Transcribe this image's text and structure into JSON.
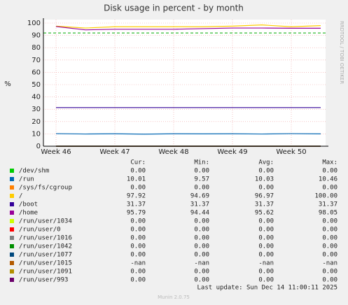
{
  "chart_data": {
    "type": "line",
    "title": "Disk usage in percent - by month",
    "y_label": "%",
    "side_label": "RRDTOOL / TOBI OETIKER",
    "categories": [
      "Week 46",
      null,
      "Week 47",
      null,
      "Week 48",
      null,
      "Week 49",
      null,
      "Week 50",
      null
    ],
    "ylim": [
      0,
      100
    ],
    "yticks": [
      0,
      10,
      20,
      30,
      40,
      50,
      60,
      70,
      80,
      90,
      100
    ],
    "grid": true,
    "threshold": 92,
    "threshold_color": "#00aa00",
    "stat_headers": [
      "Cur:",
      "Min:",
      "Avg:",
      "Max:"
    ],
    "series": [
      {
        "name": "/dev/shm",
        "color": "#00cc00",
        "values": [
          0,
          0,
          0,
          0,
          0,
          0,
          0,
          0,
          0,
          0
        ],
        "stats": [
          "0.00",
          "0.00",
          "0.00",
          "0.00"
        ]
      },
      {
        "name": "/run",
        "color": "#0066b3",
        "values": [
          10.2,
          9.9,
          10.1,
          9.8,
          10.1,
          10,
          10.1,
          9.9,
          10.2,
          10.01
        ],
        "stats": [
          "10.01",
          "9.57",
          "10.03",
          "10.46"
        ]
      },
      {
        "name": "/sys/fs/cgroup",
        "color": "#ff8000",
        "values": [
          0,
          0,
          0,
          0,
          0,
          0,
          0,
          0,
          0,
          0
        ],
        "stats": [
          "0.00",
          "0.00",
          "0.00",
          "0.00"
        ]
      },
      {
        "name": "/",
        "color": "#ffcc00",
        "values": [
          97.5,
          96,
          97,
          97,
          97,
          97,
          97.5,
          98.5,
          97,
          97.92
        ],
        "stats": [
          "97.92",
          "94.69",
          "96.97",
          "100.00"
        ]
      },
      {
        "name": "/boot",
        "color": "#330099",
        "values": [
          31.37,
          31.37,
          31.37,
          31.37,
          31.37,
          31.37,
          31.37,
          31.37,
          31.37,
          31.37
        ],
        "stats": [
          "31.37",
          "31.37",
          "31.37",
          "31.37"
        ]
      },
      {
        "name": "/home",
        "color": "#990099",
        "values": [
          97.2,
          94.5,
          95,
          95,
          95,
          95.5,
          96,
          96,
          95.8,
          95.79
        ],
        "stats": [
          "95.79",
          "94.44",
          "95.62",
          "98.05"
        ]
      },
      {
        "name": "/run/user/1034",
        "color": "#ccff00",
        "values": [
          0,
          0,
          0,
          0,
          0,
          0,
          0,
          0,
          0,
          0
        ],
        "stats": [
          "0.00",
          "0.00",
          "0.00",
          "0.00"
        ]
      },
      {
        "name": "/run/user/0",
        "color": "#ff0000",
        "values": [
          0,
          0,
          0,
          0,
          0,
          0,
          0,
          0,
          0,
          0
        ],
        "stats": [
          "0.00",
          "0.00",
          "0.00",
          "0.00"
        ]
      },
      {
        "name": "/run/user/1016",
        "color": "#808080",
        "values": [
          0,
          0,
          0,
          0,
          0,
          0,
          0,
          0,
          0,
          0
        ],
        "stats": [
          "0.00",
          "0.00",
          "0.00",
          "0.00"
        ]
      },
      {
        "name": "/run/user/1042",
        "color": "#008f00",
        "values": [
          0,
          0,
          0,
          0,
          0,
          0,
          0,
          0,
          0,
          0
        ],
        "stats": [
          "0.00",
          "0.00",
          "0.00",
          "0.00"
        ]
      },
      {
        "name": "/run/user/1077",
        "color": "#00487d",
        "values": [
          0,
          0,
          0,
          0,
          0,
          0,
          0,
          0,
          0,
          0
        ],
        "stats": [
          "0.00",
          "0.00",
          "0.00",
          "0.00"
        ]
      },
      {
        "name": "/run/user/1015",
        "color": "#b35a00",
        "values": [
          null,
          null,
          null,
          null,
          null,
          null,
          null,
          null,
          null,
          null
        ],
        "stats": [
          "-nan",
          "-nan",
          "-nan",
          "-nan"
        ]
      },
      {
        "name": "/run/user/1091",
        "color": "#b38f00",
        "values": [
          0,
          0,
          0,
          0,
          0,
          0,
          0,
          0,
          0,
          0
        ],
        "stats": [
          "0.00",
          "0.00",
          "0.00",
          "0.00"
        ]
      },
      {
        "name": "/run/user/993",
        "color": "#6b006b",
        "values": [
          0,
          0,
          0,
          0,
          0,
          0,
          0,
          0,
          0,
          0
        ],
        "stats": [
          "0.00",
          "0.00",
          "0.00",
          "0.00"
        ]
      }
    ],
    "last_update": "Last update: Sun Dec 14 11:00:11 2025",
    "footer": "Munin 2.0.75"
  }
}
